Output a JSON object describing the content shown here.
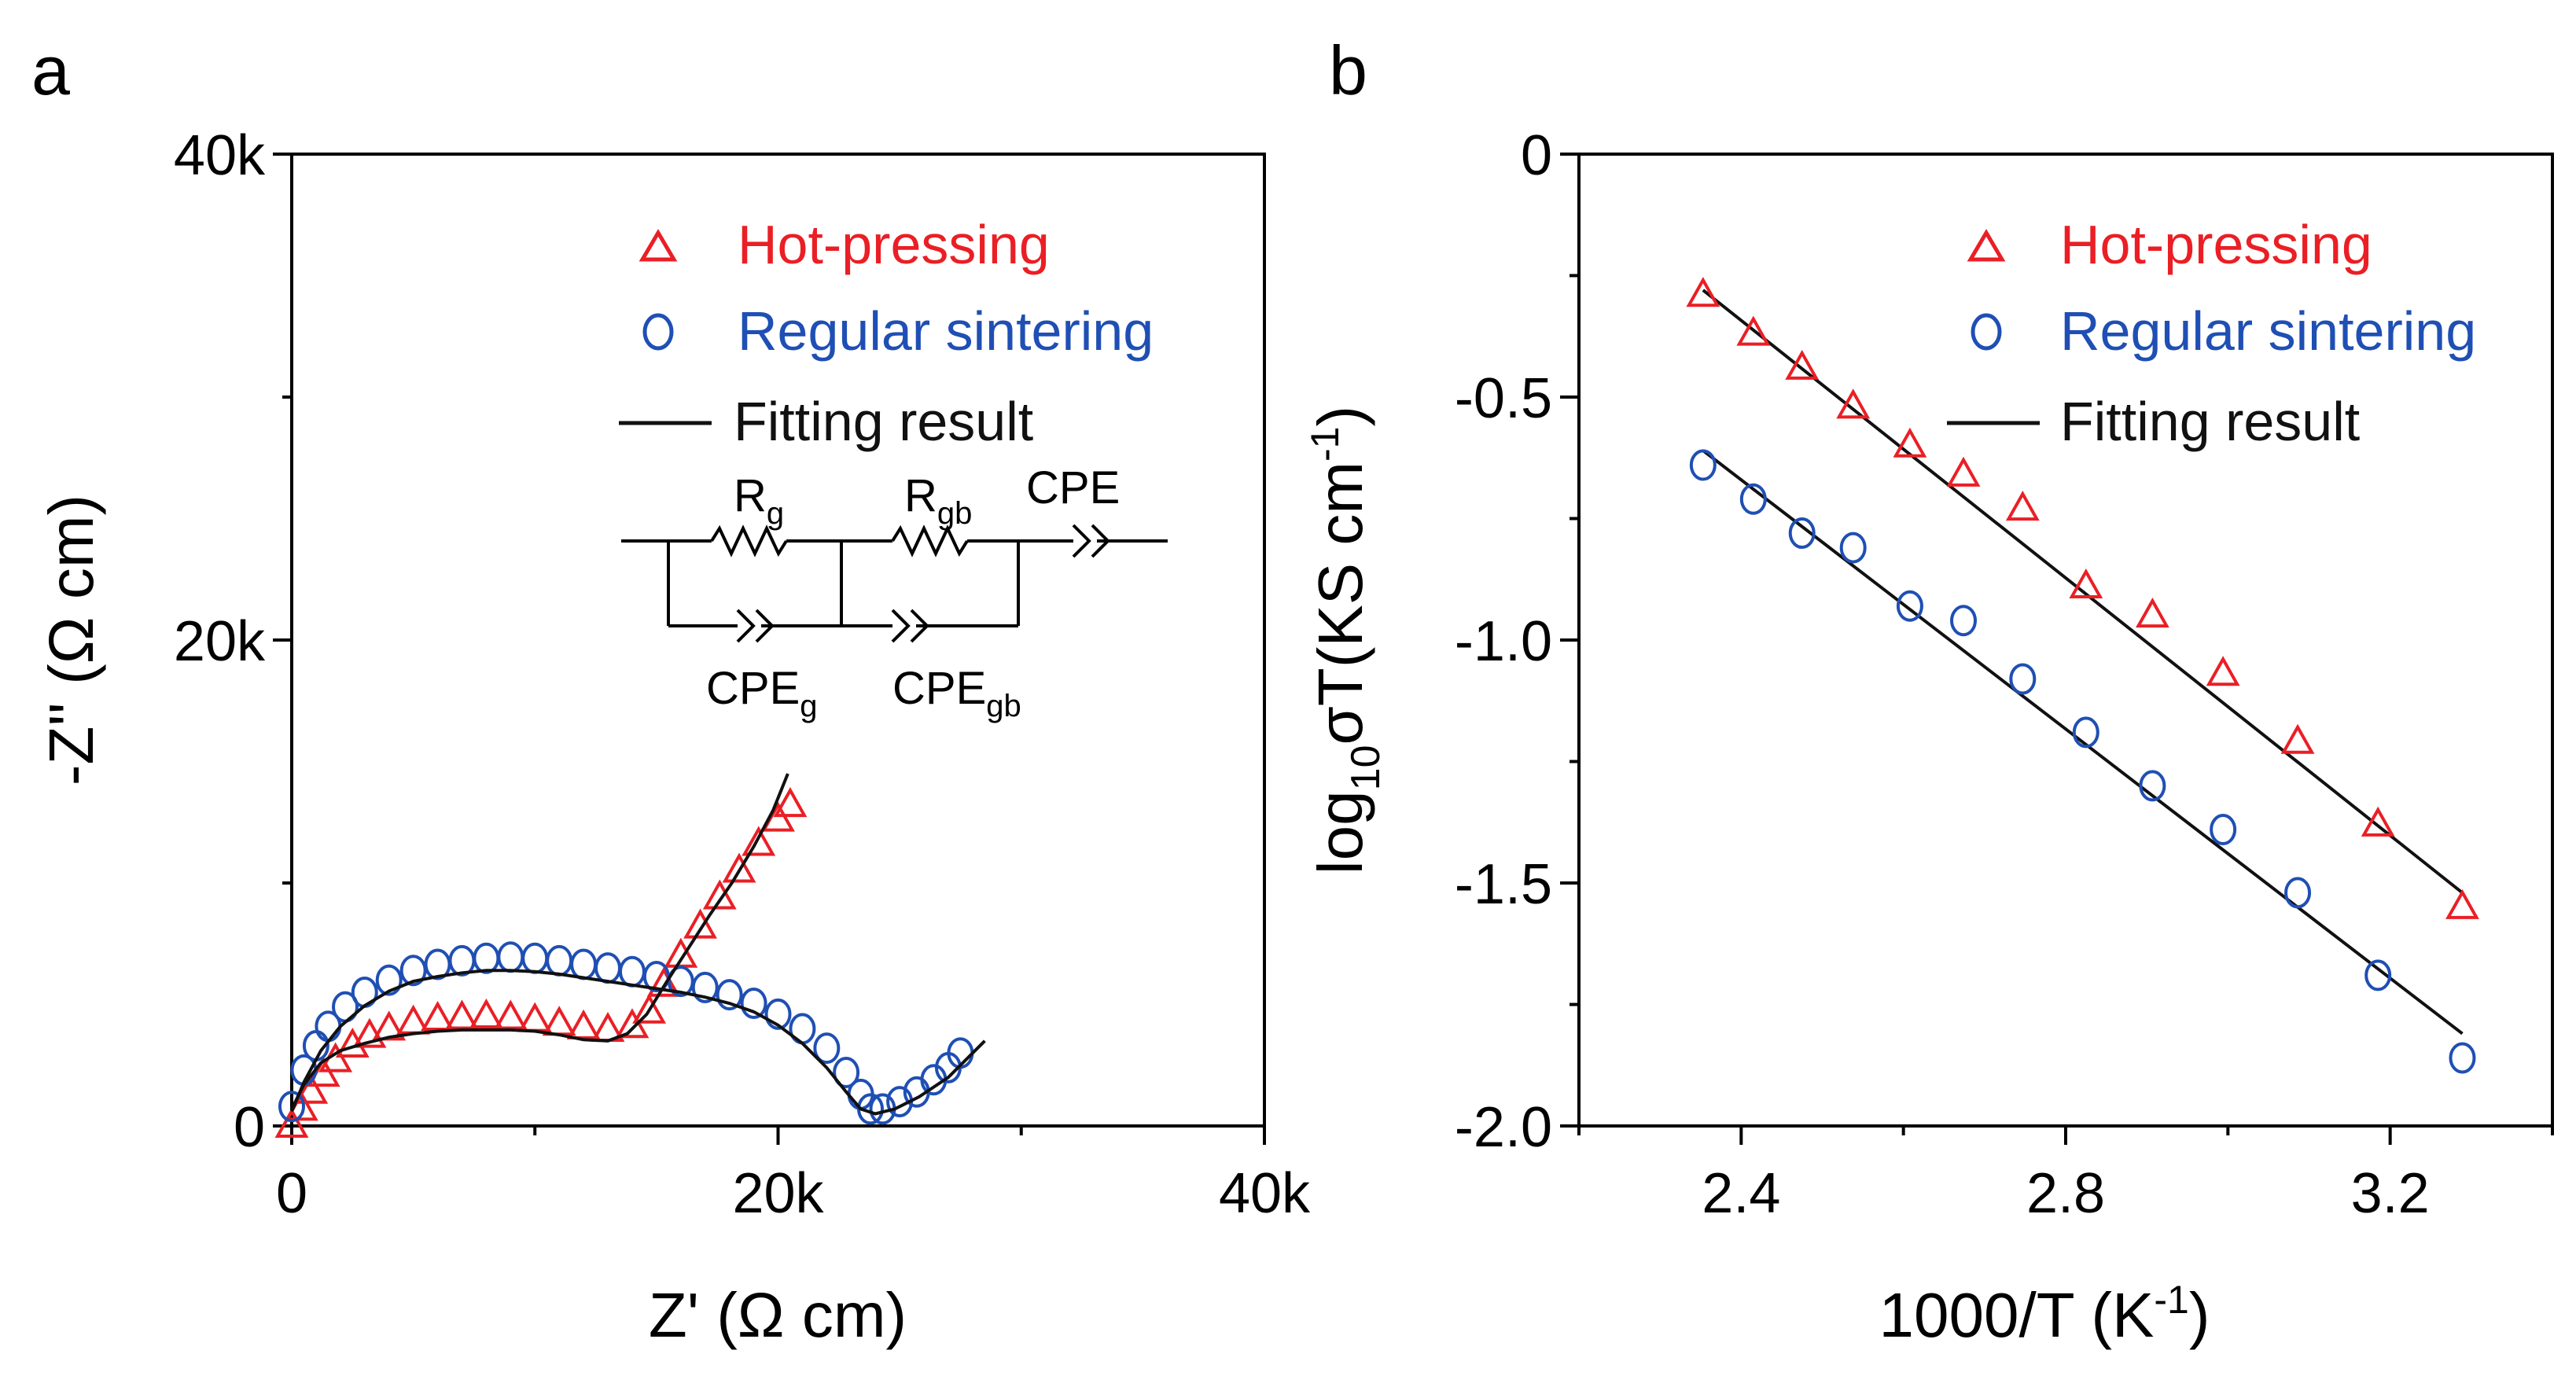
{
  "colors": {
    "hot_pressing": "#ea1f25",
    "regular_sintering": "#1f4fb4",
    "fit": "#111111",
    "axis": "#000000"
  },
  "chart_data": [
    {
      "panel_label": "a",
      "type": "scatter",
      "xlabel": "Z' (Ω cm)",
      "ylabel": "-Z'' (Ω cm)",
      "xlim": [
        0,
        40000
      ],
      "ylim": [
        0,
        40000
      ],
      "xticks": [
        0,
        20000,
        40000
      ],
      "xtick_labels": [
        "0",
        "20k",
        "40k"
      ],
      "yticks": [
        0,
        20000,
        40000
      ],
      "ytick_labels": [
        "0",
        "20k",
        "40k"
      ],
      "series": [
        {
          "name": "Hot-pressing",
          "marker": "triangle",
          "color": "#ea1f25",
          "points": [
            [
              0,
              0
            ],
            [
              400,
              700
            ],
            [
              800,
              1400
            ],
            [
              1300,
              2100
            ],
            [
              1800,
              2700
            ],
            [
              2500,
              3300
            ],
            [
              3200,
              3700
            ],
            [
              4000,
              4000
            ],
            [
              5000,
              4250
            ],
            [
              6000,
              4400
            ],
            [
              7000,
              4450
            ],
            [
              8000,
              4500
            ],
            [
              9000,
              4450
            ],
            [
              10000,
              4350
            ],
            [
              11000,
              4200
            ],
            [
              12000,
              4050
            ],
            [
              13000,
              3950
            ],
            [
              14000,
              4100
            ],
            [
              14700,
              4700
            ],
            [
              15300,
              5800
            ],
            [
              16000,
              7000
            ],
            [
              16800,
              8200
            ],
            [
              17600,
              9400
            ],
            [
              18400,
              10500
            ],
            [
              19200,
              11600
            ],
            [
              20000,
              12600
            ],
            [
              20500,
              13200
            ]
          ]
        },
        {
          "name": "Regular sintering",
          "marker": "circle",
          "color": "#1f4fb4",
          "points": [
            [
              0,
              800
            ],
            [
              500,
              2300
            ],
            [
              1000,
              3300
            ],
            [
              1500,
              4100
            ],
            [
              2200,
              4900
            ],
            [
              3000,
              5500
            ],
            [
              4000,
              6000
            ],
            [
              5000,
              6400
            ],
            [
              6000,
              6650
            ],
            [
              7000,
              6800
            ],
            [
              8000,
              6900
            ],
            [
              9000,
              6950
            ],
            [
              10000,
              6900
            ],
            [
              11000,
              6800
            ],
            [
              12000,
              6650
            ],
            [
              13000,
              6500
            ],
            [
              14000,
              6350
            ],
            [
              15000,
              6150
            ],
            [
              16000,
              5950
            ],
            [
              17000,
              5700
            ],
            [
              18000,
              5400
            ],
            [
              19000,
              5050
            ],
            [
              20000,
              4600
            ],
            [
              21000,
              4000
            ],
            [
              22000,
              3200
            ],
            [
              22800,
              2200
            ],
            [
              23400,
              1300
            ],
            [
              23800,
              700
            ],
            [
              24300,
              700
            ],
            [
              25000,
              1000
            ],
            [
              25700,
              1400
            ],
            [
              26400,
              1900
            ],
            [
              27000,
              2400
            ],
            [
              27500,
              3000
            ]
          ]
        }
      ],
      "fit_lines": [
        {
          "name": "Hot-pressing fit",
          "points": [
            [
              0,
              700
            ],
            [
              500,
              1700
            ],
            [
              1200,
              2600
            ],
            [
              2000,
              3100
            ],
            [
              3000,
              3400
            ],
            [
              4000,
              3650
            ],
            [
              5000,
              3800
            ],
            [
              6000,
              3900
            ],
            [
              7000,
              3950
            ],
            [
              8000,
              3950
            ],
            [
              9000,
              3950
            ],
            [
              10000,
              3900
            ],
            [
              11000,
              3750
            ],
            [
              12000,
              3550
            ],
            [
              13000,
              3500
            ],
            [
              13800,
              3800
            ],
            [
              14600,
              4600
            ],
            [
              15400,
              5900
            ],
            [
              16300,
              7300
            ],
            [
              17200,
              8700
            ],
            [
              18100,
              10000
            ],
            [
              19000,
              11500
            ],
            [
              19800,
              13000
            ],
            [
              20400,
              14500
            ]
          ]
        },
        {
          "name": "Regular sintering fit",
          "points": [
            [
              0,
              600
            ],
            [
              500,
              1800
            ],
            [
              1200,
              3100
            ],
            [
              2000,
              4100
            ],
            [
              3000,
              4950
            ],
            [
              4000,
              5550
            ],
            [
              5000,
              5950
            ],
            [
              6000,
              6150
            ],
            [
              7000,
              6300
            ],
            [
              8000,
              6400
            ],
            [
              9000,
              6400
            ],
            [
              10000,
              6350
            ],
            [
              11000,
              6250
            ],
            [
              12000,
              6100
            ],
            [
              13000,
              5950
            ],
            [
              14000,
              5800
            ],
            [
              15000,
              5650
            ],
            [
              16000,
              5500
            ],
            [
              17000,
              5300
            ],
            [
              18000,
              5050
            ],
            [
              19000,
              4700
            ],
            [
              20000,
              4150
            ],
            [
              21000,
              3400
            ],
            [
              22000,
              2400
            ],
            [
              22800,
              1400
            ],
            [
              23400,
              700
            ],
            [
              24000,
              500
            ],
            [
              24800,
              700
            ],
            [
              25800,
              1200
            ],
            [
              27000,
              2000
            ],
            [
              28500,
              3500
            ]
          ]
        }
      ],
      "legend": {
        "position": "top-right",
        "items": [
          {
            "label": "Hot-pressing",
            "marker": "triangle"
          },
          {
            "label": "Regular sintering",
            "marker": "circle"
          },
          {
            "label": "Fitting result",
            "marker": "line"
          }
        ]
      },
      "circuit": {
        "labels": {
          "rg": "R",
          "rg_sub": "g",
          "rgb": "R",
          "rgb_sub": "gb",
          "cpe": "CPE",
          "cpe_g": "CPE",
          "cpe_g_sub": "g",
          "cpe_gb": "CPE",
          "cpe_gb_sub": "gb"
        }
      }
    },
    {
      "panel_label": "b",
      "type": "scatter",
      "xlabel_main": "1000/T (K",
      "xlabel_sup": "-1",
      "xlabel_end": ")",
      "ylabel_log": "log",
      "ylabel_log_sub": "10",
      "ylabel_main": "σT(KS cm",
      "ylabel_sup": "-1",
      "ylabel_end": ")",
      "xlim": [
        2.2,
        3.4
      ],
      "ylim": [
        -2.0,
        0
      ],
      "xticks": [
        2.4,
        2.8,
        3.2
      ],
      "xtick_labels": [
        "2.4",
        "2.8",
        "3.2"
      ],
      "yticks": [
        0,
        -0.5,
        -1.0,
        -1.5,
        -2.0
      ],
      "ytick_labels": [
        "0",
        "-0.5",
        "-1.0",
        "-1.5",
        "-2.0"
      ],
      "series": [
        {
          "name": "Hot-pressing",
          "marker": "triangle",
          "color": "#ea1f25",
          "x": [
            2.353,
            2.415,
            2.475,
            2.538,
            2.608,
            2.674,
            2.747,
            2.825,
            2.907,
            2.994,
            3.086,
            3.185,
            3.289
          ],
          "y": [
            -0.29,
            -0.37,
            -0.44,
            -0.52,
            -0.6,
            -0.66,
            -0.73,
            -0.89,
            -0.95,
            -1.07,
            -1.21,
            -1.38,
            -1.55
          ]
        },
        {
          "name": "Regular sintering",
          "marker": "circle",
          "color": "#1f4fb4",
          "x": [
            2.353,
            2.415,
            2.475,
            2.538,
            2.608,
            2.674,
            2.747,
            2.825,
            2.907,
            2.994,
            3.086,
            3.185,
            3.289
          ],
          "y": [
            -0.64,
            -0.71,
            -0.78,
            -0.81,
            -0.93,
            -0.96,
            -1.08,
            -1.19,
            -1.3,
            -1.39,
            -1.52,
            -1.69,
            -1.86
          ]
        }
      ],
      "fit_lines": [
        {
          "name": "Hot-pressing fit",
          "x": [
            2.353,
            3.289
          ],
          "y": [
            -0.28,
            -1.52
          ]
        },
        {
          "name": "Regular sintering fit",
          "x": [
            2.353,
            3.289
          ],
          "y": [
            -0.61,
            -1.81
          ]
        }
      ],
      "legend": {
        "position": "top-right",
        "items": [
          {
            "label": "Hot-pressing",
            "marker": "triangle"
          },
          {
            "label": "Regular sintering",
            "marker": "circle"
          },
          {
            "label": "Fitting result",
            "marker": "line"
          }
        ]
      }
    }
  ]
}
